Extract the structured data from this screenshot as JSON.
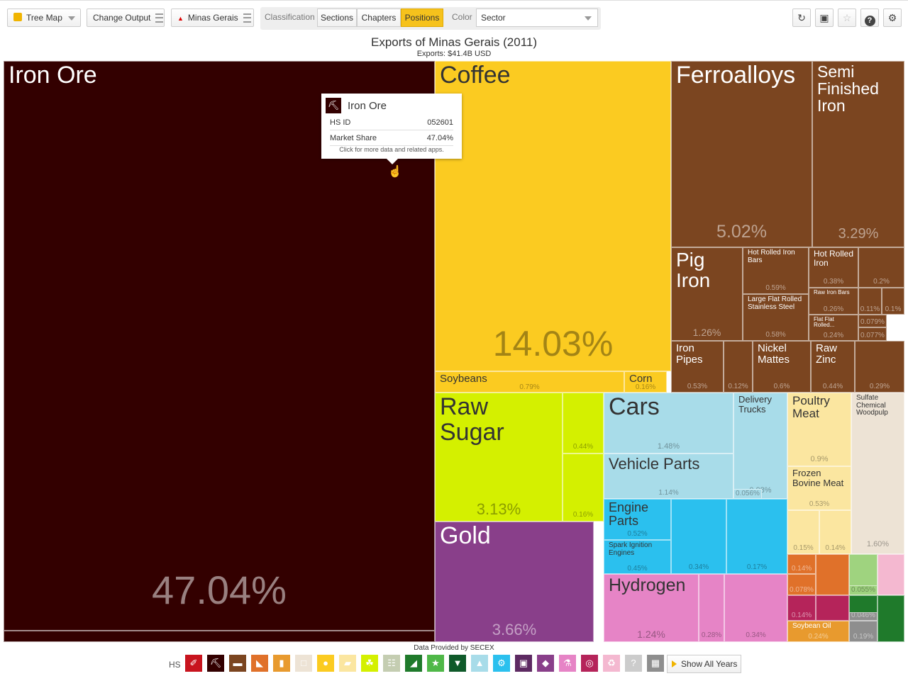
{
  "toolbar": {
    "viz_select": "Tree Map",
    "change_output": "Change Output",
    "location": "Minas Gerais",
    "classification_label": "Classification",
    "tabs": [
      "Sections",
      "Chapters",
      "Positions"
    ],
    "active_tab": "Positions",
    "color_label": "Color",
    "color_value": "Sector",
    "icon_buttons": [
      "refresh-icon",
      "save-icon",
      "star-icon",
      "help-icon",
      "settings-icon"
    ]
  },
  "header": {
    "title": "Exports of Minas Gerais (2011)",
    "subtitle": "Exports: $41.4B USD"
  },
  "chart_data": {
    "type": "treemap",
    "title": "Exports of Minas Gerais (2011)",
    "subtitle": "Exports: $41.4B USD",
    "items": [
      {
        "id": "iron-ore",
        "label": "Iron Ore",
        "share": "47.04%",
        "color": "#330000"
      },
      {
        "id": "coffee",
        "label": "Coffee",
        "share": "14.03%",
        "color": "#fbcb21"
      },
      {
        "id": "soybeans",
        "label": "Soybeans",
        "share": "0.79%",
        "color": "#fbcb21"
      },
      {
        "id": "corn",
        "label": "Corn",
        "share": "0.16%",
        "color": "#fbcb21"
      },
      {
        "id": "ferroalloys",
        "label": "Ferroalloys",
        "share": "5.02%",
        "color": "#7b4520"
      },
      {
        "id": "semi-finished-iron",
        "label": "Semi Finished Iron",
        "share": "3.29%",
        "color": "#7b4520"
      },
      {
        "id": "pig-iron",
        "label": "Pig Iron",
        "share": "1.26%",
        "color": "#7b4520"
      },
      {
        "id": "hot-rolled-iron-bars",
        "label": "Hot Rolled Iron Bars",
        "share": "0.59%",
        "color": "#7b4520"
      },
      {
        "id": "large-flat-rolled-stainless-steel",
        "label": "Large Flat Rolled Stainless Steel",
        "share": "0.58%",
        "color": "#7b4520"
      },
      {
        "id": "hot-rolled-iron",
        "label": "Hot Rolled Iron",
        "share": "0.38%",
        "color": "#7b4520"
      },
      {
        "id": "raw-iron-bars",
        "label": "Raw Iron Bars",
        "share": "0.26%",
        "color": "#7b4520"
      },
      {
        "id": "flat-flat-rolled",
        "label": "Flat Flat Rolled...",
        "share": "0.24%",
        "color": "#7b4520"
      },
      {
        "id": "brown-small-1",
        "label": "",
        "share": "0.2%",
        "color": "#7b4520"
      },
      {
        "id": "brown-small-2",
        "label": "",
        "share": "0.11%",
        "color": "#7b4520"
      },
      {
        "id": "brown-small-3",
        "label": "",
        "share": "0.1%",
        "color": "#7b4520"
      },
      {
        "id": "brown-small-4",
        "label": "",
        "share": "0.079%",
        "color": "#7b4520"
      },
      {
        "id": "brown-small-5",
        "label": "",
        "share": "0.077%",
        "color": "#7b4520"
      },
      {
        "id": "iron-pipes",
        "label": "Iron Pipes",
        "share": "0.53%",
        "color": "#7b4520"
      },
      {
        "id": "brown-small-6",
        "label": "",
        "share": "0.12%",
        "color": "#7b4520"
      },
      {
        "id": "nickel-mattes",
        "label": "Nickel Mattes",
        "share": "0.6%",
        "color": "#7b4520"
      },
      {
        "id": "raw-zinc",
        "label": "Raw Zinc",
        "share": "0.44%",
        "color": "#7b4520"
      },
      {
        "id": "brown-small-7",
        "label": "",
        "share": "0.29%",
        "color": "#7b4520"
      },
      {
        "id": "raw-sugar",
        "label": "Raw Sugar",
        "share": "3.13%",
        "color": "#d4f000"
      },
      {
        "id": "sugar-small-1",
        "label": "",
        "share": "0.44%",
        "color": "#d4f000"
      },
      {
        "id": "sugar-small-2",
        "label": "",
        "share": "0.16%",
        "color": "#d4f000"
      },
      {
        "id": "gold",
        "label": "Gold",
        "share": "3.66%",
        "color": "#893f8a"
      },
      {
        "id": "cars",
        "label": "Cars",
        "share": "1.48%",
        "color": "#a8dce9"
      },
      {
        "id": "delivery-trucks",
        "label": "Delivery Trucks",
        "share": "0.98%",
        "color": "#a8dce9"
      },
      {
        "id": "vehicle-parts",
        "label": "Vehicle Parts",
        "share": "1.14%",
        "color": "#a8dce9"
      },
      {
        "id": "vehicle-small-1",
        "label": "",
        "share": "0.056%",
        "color": "#a8dce9"
      },
      {
        "id": "engine-parts",
        "label": "Engine Parts",
        "share": "0.52%",
        "color": "#2bc0ee"
      },
      {
        "id": "spark-ignition-engines",
        "label": "Spark Ignition Engines",
        "share": "0.45%",
        "color": "#2bc0ee"
      },
      {
        "id": "machinery-small-1",
        "label": "",
        "share": "0.34%",
        "color": "#2bc0ee"
      },
      {
        "id": "machinery-small-2",
        "label": "",
        "share": "0.17%",
        "color": "#2bc0ee"
      },
      {
        "id": "hydrogen",
        "label": "Hydrogen",
        "share": "1.24%",
        "color": "#e684c6"
      },
      {
        "id": "chem-small-1",
        "label": "",
        "share": "0.28%",
        "color": "#e684c6"
      },
      {
        "id": "chem-small-2",
        "label": "",
        "share": "0.34%",
        "color": "#e684c6"
      },
      {
        "id": "poultry-meat",
        "label": "Poultry Meat",
        "share": "0.9%",
        "color": "#fbe6a0"
      },
      {
        "id": "frozen-bovine-meat",
        "label": "Frozen Bovine Meat",
        "share": "0.53%",
        "color": "#fbe6a0"
      },
      {
        "id": "meat-small-1",
        "label": "",
        "share": "0.15%",
        "color": "#fbe6a0"
      },
      {
        "id": "meat-small-2",
        "label": "",
        "share": "0.14%",
        "color": "#fbe6a0"
      },
      {
        "id": "sulfate-chemical-woodpulp",
        "label": "Sulfate Chemical Woodpulp",
        "share": "1.60%",
        "color": "#ede3d5"
      },
      {
        "id": "orange-small-1",
        "label": "",
        "share": "0.14%",
        "color": "#e0712a"
      },
      {
        "id": "orange-small-2",
        "label": "",
        "share": "0.078%",
        "color": "#e0712a"
      },
      {
        "id": "magenta-small-1",
        "label": "",
        "share": "0.14%",
        "color": "#b5245a"
      },
      {
        "id": "soybean-oil",
        "label": "Soybean Oil",
        "share": "0.24%",
        "color": "#e89a2e"
      },
      {
        "id": "green-small-1",
        "label": "",
        "share": "0.18%",
        "color": "#9fd37f"
      },
      {
        "id": "green-small-2",
        "label": "",
        "share": "0.055%",
        "color": "#9fd37f"
      },
      {
        "id": "darkgreen-small-1",
        "label": "",
        "share": "0.073%",
        "color": "#1f7a2b"
      },
      {
        "id": "gray-small-1",
        "label": "",
        "share": "0.046%",
        "color": "#8e8e8e"
      },
      {
        "id": "gray-small-2",
        "label": "",
        "share": "0.19%",
        "color": "#8e8e8e"
      }
    ]
  },
  "tooltip": {
    "title": "Iron Ore",
    "rows": [
      {
        "label": "HS ID",
        "value": "052601"
      },
      {
        "label": "Market Share",
        "value": "47.04%"
      }
    ],
    "hint": "Click for more data and related apps."
  },
  "footer": {
    "source": "Data Provided by SECEX",
    "hs_label": "HS",
    "show_all": "Show All Years",
    "sectors": [
      {
        "icon": "hide-icon",
        "color": "#c8141e"
      },
      {
        "icon": "mining-icon",
        "color": "#330000"
      },
      {
        "icon": "anvil-icon",
        "color": "#7b4520"
      },
      {
        "icon": "cattle-icon",
        "color": "#e0712a"
      },
      {
        "icon": "bottle-icon",
        "color": "#e89a2e"
      },
      {
        "icon": "paper-icon",
        "color": "#ede3d5"
      },
      {
        "icon": "fruit-icon",
        "color": "#fbcb21"
      },
      {
        "icon": "animal-icon",
        "color": "#fbe6a0"
      },
      {
        "icon": "plant-icon",
        "color": "#d4f000"
      },
      {
        "icon": "stone-icon",
        "color": "#c4cdb1"
      },
      {
        "icon": "footwear-icon",
        "color": "#1f7a2b"
      },
      {
        "icon": "star-icon",
        "color": "#4fb848"
      },
      {
        "icon": "textile-icon",
        "color": "#0f5a2a"
      },
      {
        "icon": "road-icon",
        "color": "#a8dce9"
      },
      {
        "icon": "machine-icon",
        "color": "#2bc0ee"
      },
      {
        "icon": "frame-icon",
        "color": "#5d2a62"
      },
      {
        "icon": "gem-icon",
        "color": "#893f8a"
      },
      {
        "icon": "flask-icon",
        "color": "#e684c6"
      },
      {
        "icon": "instrument-icon",
        "color": "#b5245a"
      },
      {
        "icon": "recycle-icon",
        "color": "#f4b8d0"
      },
      {
        "icon": "unknown-icon",
        "color": "#cccccc"
      },
      {
        "icon": "box-icon",
        "color": "#8e8e8e"
      }
    ]
  }
}
